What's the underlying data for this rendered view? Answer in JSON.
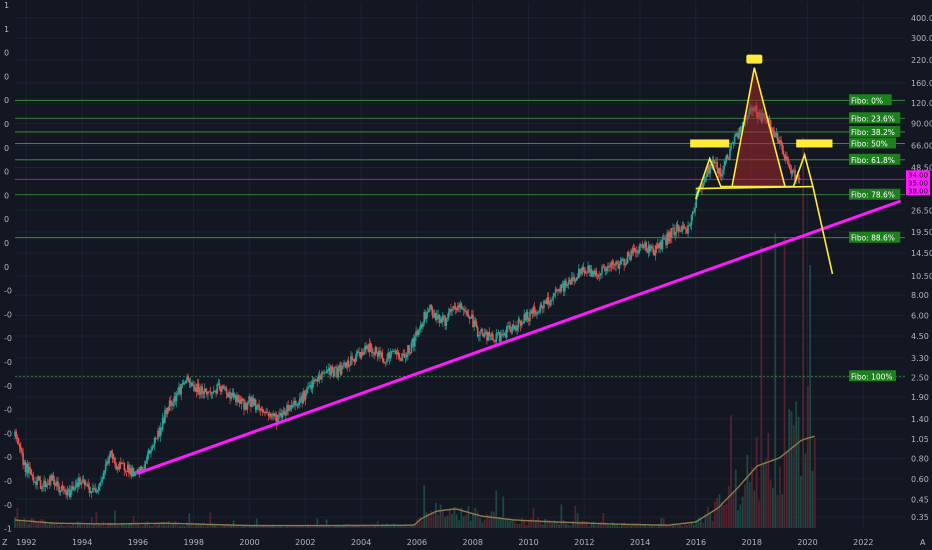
{
  "chart_data": {
    "type": "candlestick",
    "scale": "log",
    "x_tick_labels": [
      "1992",
      "1994",
      "1996",
      "1998",
      "2000",
      "2002",
      "2004",
      "2006",
      "2008",
      "2010",
      "2012",
      "2014",
      "2016",
      "2018",
      "2020",
      "2022"
    ],
    "y_tick_labels": [
      "400.00",
      "300.00",
      "220.00",
      "160.00",
      "120.00",
      "90.00",
      "66.00",
      "48.50",
      "26.50",
      "19.50",
      "14.50",
      "10.50",
      "8.00",
      "6.00",
      "4.50",
      "3.30",
      "2.50",
      "1.90",
      "1.40",
      "1.05",
      "0.80",
      "0.60",
      "0.45",
      "0.35"
    ],
    "y_ticks": [
      400,
      300,
      220,
      160,
      120,
      90,
      66,
      48.5,
      26.5,
      19.5,
      14.5,
      10.5,
      8,
      6,
      4.5,
      3.3,
      2.5,
      1.9,
      1.4,
      1.05,
      0.8,
      0.6,
      0.45,
      0.35
    ],
    "y_range": [
      0.3,
      500
    ],
    "x_range": [
      1991.6,
      2023.5
    ],
    "left_axis_labels": [
      "1",
      "1",
      "0",
      "0",
      "0",
      "0",
      "0",
      "0",
      "0",
      "0",
      "0",
      "0",
      "-0",
      "-0",
      "-0",
      "-0",
      "-0",
      "-0",
      "-0",
      "-0",
      "-0",
      "-0",
      "-1"
    ],
    "fibonacci_levels": [
      {
        "label": "Fibo:  0%",
        "price": 125
      },
      {
        "label": "Fibo: 23.6%",
        "price": 97
      },
      {
        "label": "Fibo: 38.2%",
        "price": 80
      },
      {
        "label": "Fibo:  50%",
        "price": 68
      },
      {
        "label": "Fibo: 61.8%",
        "price": 54
      },
      {
        "label": "Fibo: 78.6%",
        "price": 33
      },
      {
        "label": "Fibo: 88.6%",
        "price": 18
      },
      {
        "label": "Fibo: 100%",
        "price": 2.55
      }
    ],
    "horizontal_line_price": 41,
    "trendline": [
      {
        "x": 1996.0,
        "y": 0.65
      },
      {
        "x": 2023.3,
        "y": 30
      }
    ],
    "pattern": {
      "head": {
        "x": 2018.1,
        "y": 198
      },
      "left_shoulder": {
        "x": 2016.5,
        "y": 55
      },
      "right_shoulder": {
        "x": 2019.9,
        "y": 58
      },
      "neckline": [
        {
          "x": 2016.0,
          "y": 36
        },
        {
          "x": 2020.2,
          "y": 37
        }
      ],
      "projection_target": {
        "x": 2020.9,
        "y": 10.8
      }
    },
    "price_path": [
      [
        1991.6,
        1.1
      ],
      [
        1991.8,
        0.85
      ],
      [
        1992.0,
        0.7
      ],
      [
        1992.3,
        0.6
      ],
      [
        1992.6,
        0.55
      ],
      [
        1992.9,
        0.6
      ],
      [
        1993.2,
        0.52
      ],
      [
        1993.5,
        0.48
      ],
      [
        1993.8,
        0.58
      ],
      [
        1994.1,
        0.55
      ],
      [
        1994.4,
        0.5
      ],
      [
        1994.7,
        0.6
      ],
      [
        1995.0,
        0.85
      ],
      [
        1995.3,
        0.7
      ],
      [
        1995.6,
        0.72
      ],
      [
        1995.9,
        0.62
      ],
      [
        1996.2,
        0.7
      ],
      [
        1996.5,
        0.95
      ],
      [
        1996.8,
        1.2
      ],
      [
        1997.1,
        1.7
      ],
      [
        1997.4,
        2.0
      ],
      [
        1997.7,
        2.4
      ],
      [
        1998.0,
        2.2
      ],
      [
        1998.3,
        2.1
      ],
      [
        1998.6,
        2.0
      ],
      [
        1998.9,
        2.15
      ],
      [
        1999.2,
        2.05
      ],
      [
        1999.5,
        1.85
      ],
      [
        1999.8,
        1.7
      ],
      [
        2000.1,
        1.8
      ],
      [
        2000.4,
        1.6
      ],
      [
        2000.7,
        1.5
      ],
      [
        2001.0,
        1.4
      ],
      [
        2001.3,
        1.6
      ],
      [
        2001.6,
        1.75
      ],
      [
        2001.9,
        1.9
      ],
      [
        2002.2,
        2.2
      ],
      [
        2002.5,
        2.5
      ],
      [
        2002.8,
        2.8
      ],
      [
        2003.1,
        2.7
      ],
      [
        2003.4,
        2.9
      ],
      [
        2003.7,
        3.2
      ],
      [
        2004.0,
        3.6
      ],
      [
        2004.3,
        3.8
      ],
      [
        2004.6,
        3.5
      ],
      [
        2004.9,
        3.3
      ],
      [
        2005.2,
        3.6
      ],
      [
        2005.5,
        3.3
      ],
      [
        2005.8,
        3.9
      ],
      [
        2006.1,
        5.0
      ],
      [
        2006.4,
        6.8
      ],
      [
        2006.7,
        6.0
      ],
      [
        2007.0,
        5.5
      ],
      [
        2007.3,
        6.5
      ],
      [
        2007.6,
        6.8
      ],
      [
        2007.9,
        6.0
      ],
      [
        2008.2,
        4.8
      ],
      [
        2008.5,
        4.5
      ],
      [
        2008.8,
        4.3
      ],
      [
        2009.1,
        4.6
      ],
      [
        2009.4,
        5.0
      ],
      [
        2009.7,
        5.5
      ],
      [
        2010.0,
        6.0
      ],
      [
        2010.3,
        6.5
      ],
      [
        2010.6,
        7.0
      ],
      [
        2010.9,
        7.8
      ],
      [
        2011.2,
        8.8
      ],
      [
        2011.5,
        9.8
      ],
      [
        2011.8,
        10.8
      ],
      [
        2012.1,
        11.5
      ],
      [
        2012.4,
        10.8
      ],
      [
        2012.7,
        11.5
      ],
      [
        2013.0,
        12.0
      ],
      [
        2013.3,
        12.5
      ],
      [
        2013.6,
        14.0
      ],
      [
        2013.9,
        15.5
      ],
      [
        2014.2,
        16.0
      ],
      [
        2014.5,
        15.0
      ],
      [
        2014.8,
        16.5
      ],
      [
        2015.1,
        19.0
      ],
      [
        2015.4,
        21.0
      ],
      [
        2015.7,
        20.0
      ],
      [
        2015.9,
        26.0
      ],
      [
        2016.1,
        35.0
      ],
      [
        2016.4,
        45.0
      ],
      [
        2016.6,
        52.0
      ],
      [
        2016.9,
        45.0
      ],
      [
        2017.2,
        60.0
      ],
      [
        2017.5,
        78.0
      ],
      [
        2017.8,
        98.0
      ],
      [
        2018.0,
        115.0
      ],
      [
        2018.3,
        100.0
      ],
      [
        2018.6,
        90.0
      ],
      [
        2018.9,
        75.0
      ],
      [
        2019.2,
        55.0
      ],
      [
        2019.5,
        45.0
      ],
      [
        2019.7,
        40.0
      ]
    ],
    "volume_path": [
      [
        1991.6,
        0.2
      ],
      [
        1993.0,
        0.12
      ],
      [
        1995.0,
        0.1
      ],
      [
        1997.0,
        0.12
      ],
      [
        2000.0,
        0.06
      ],
      [
        2003.0,
        0.06
      ],
      [
        2005.9,
        0.07
      ],
      [
        2006.2,
        0.25
      ],
      [
        2006.7,
        0.42
      ],
      [
        2007.4,
        0.48
      ],
      [
        2008.3,
        0.3
      ],
      [
        2009.5,
        0.2
      ],
      [
        2011.0,
        0.15
      ],
      [
        2013.0,
        0.1
      ],
      [
        2015.0,
        0.07
      ],
      [
        2016.0,
        0.15
      ],
      [
        2016.8,
        0.5
      ],
      [
        2017.5,
        1.0
      ],
      [
        2018.2,
        1.55
      ],
      [
        2019.0,
        1.75
      ],
      [
        2019.8,
        2.2
      ],
      [
        2020.3,
        2.3
      ]
    ]
  },
  "price_tags": [
    "34.00",
    "35.00",
    "38.00"
  ]
}
